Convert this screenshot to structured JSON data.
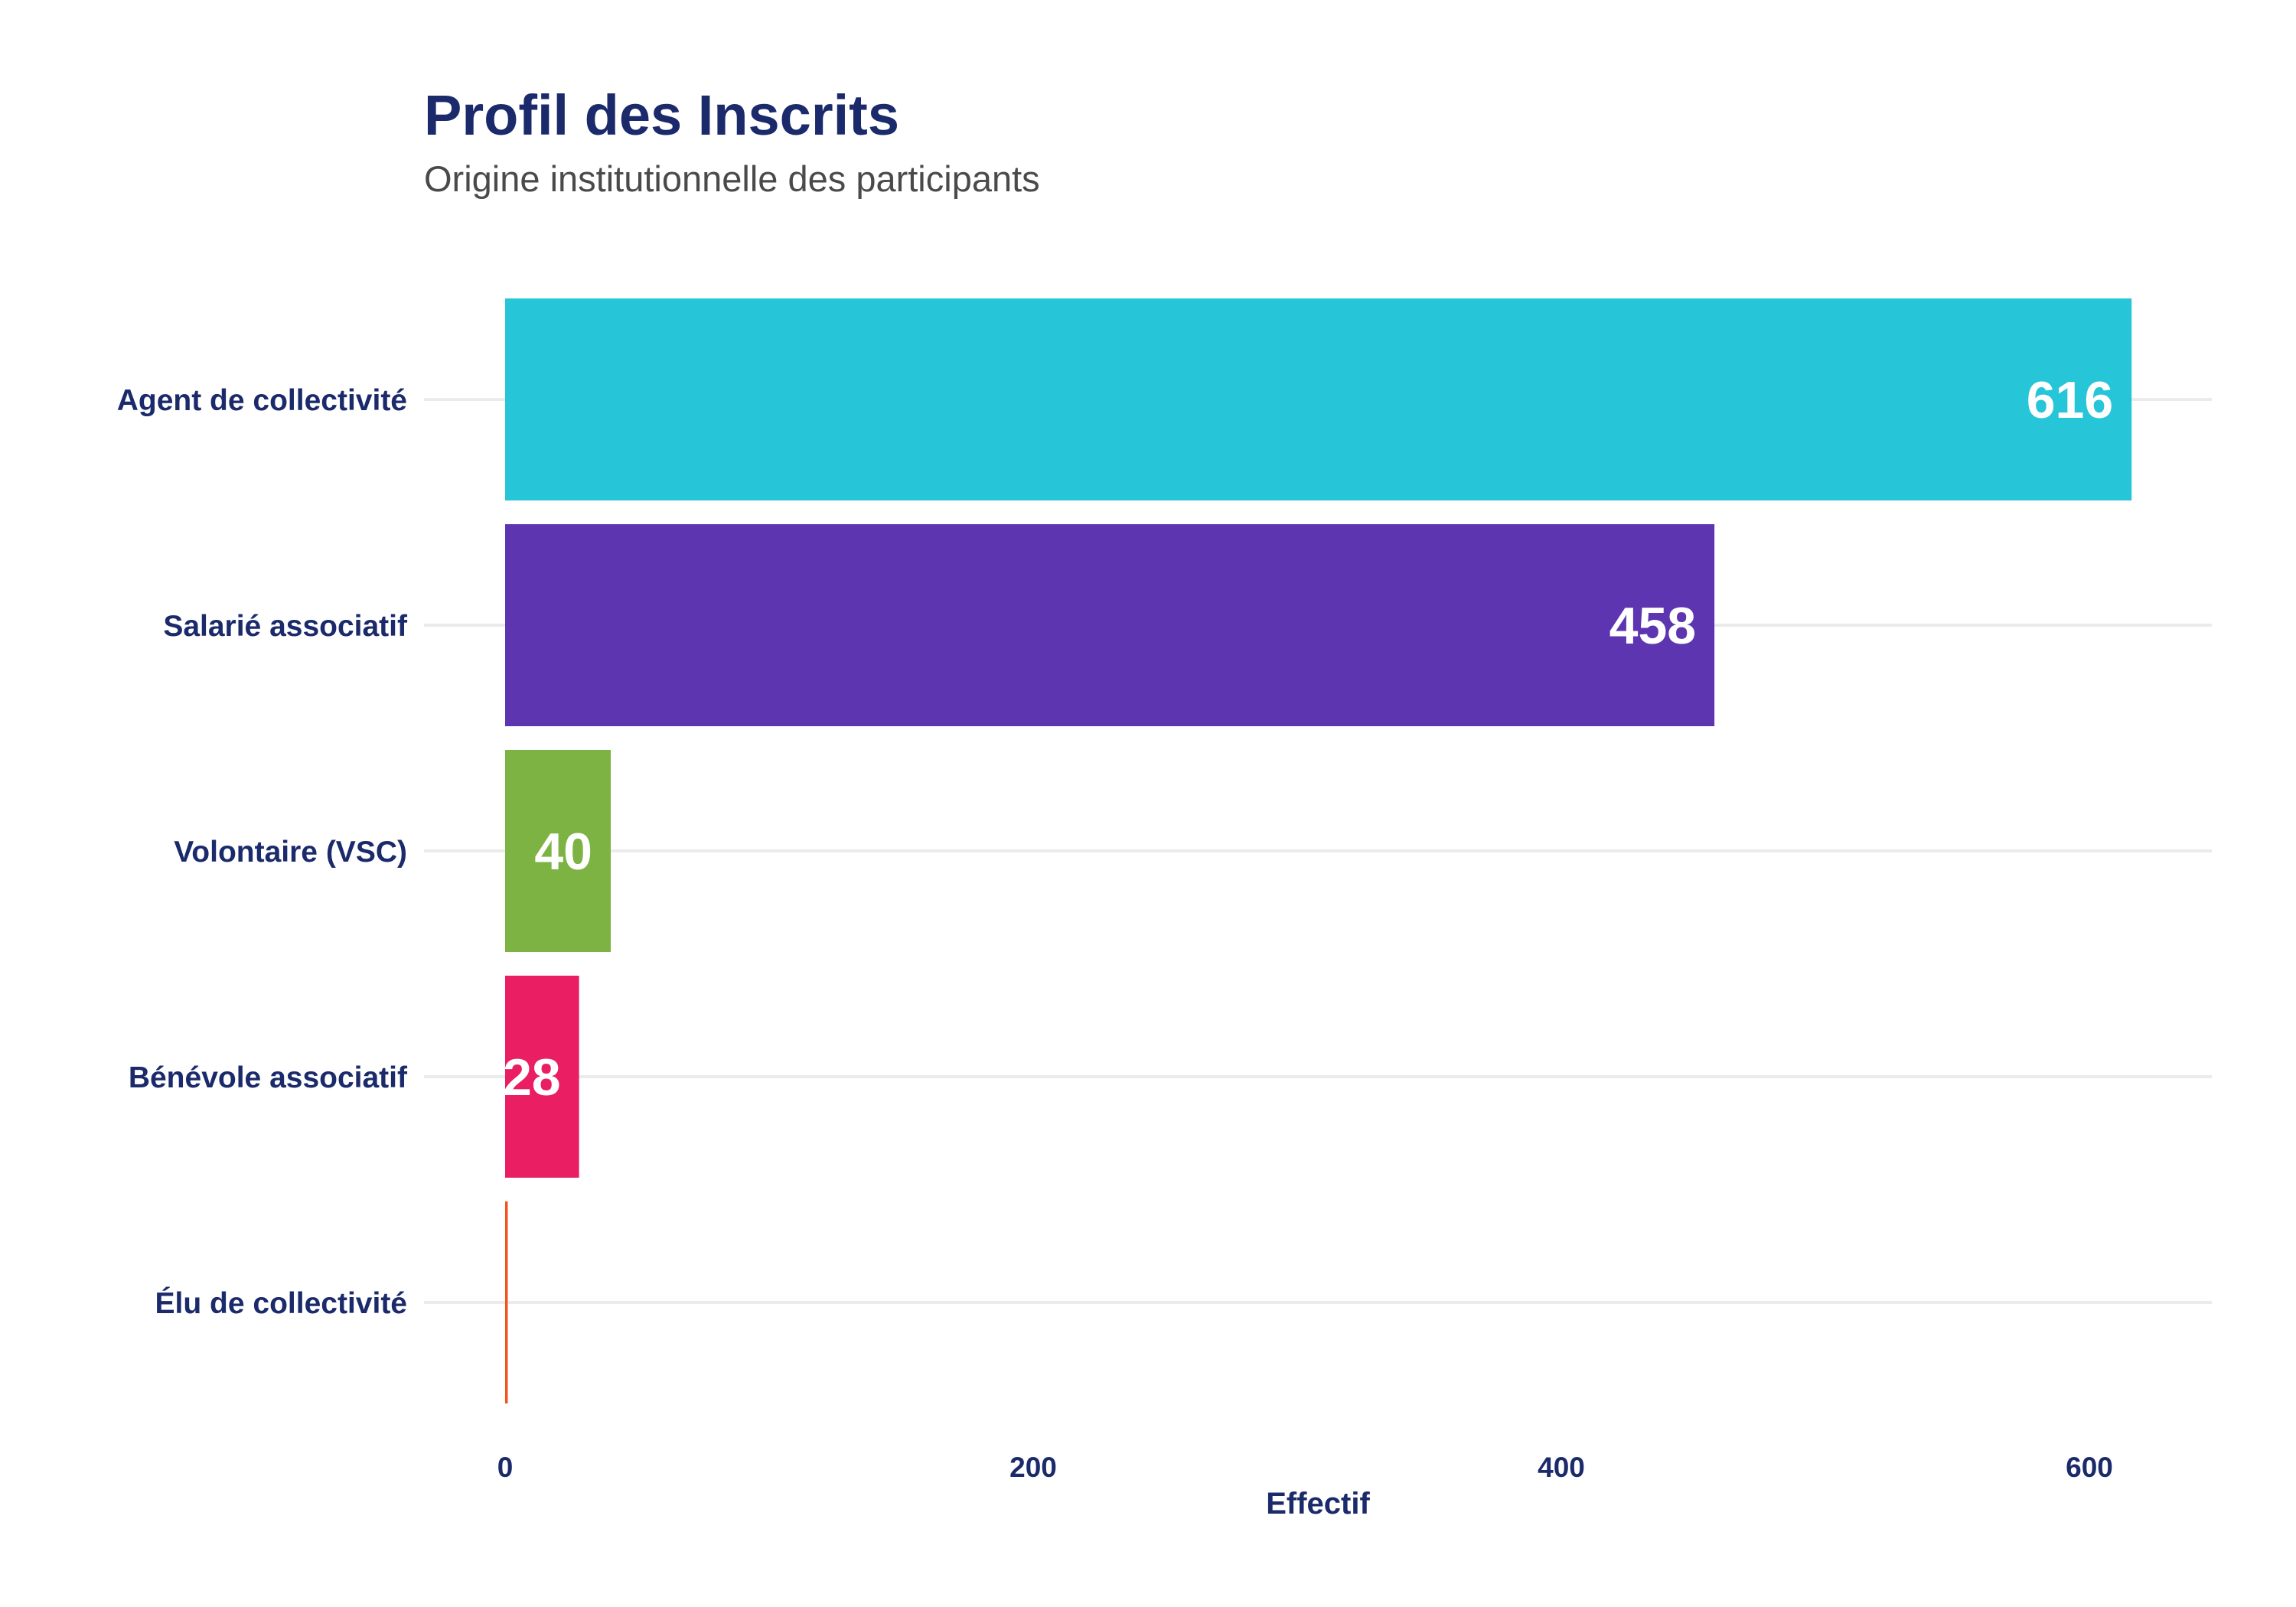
{
  "chart_data": {
    "type": "bar",
    "orientation": "horizontal",
    "title": "Profil des Inscrits",
    "subtitle": "Origine institutionnelle des participants",
    "xlabel": "Effectif",
    "ylabel": "",
    "xlim": [
      0,
      630
    ],
    "x_ticks": [
      0,
      200,
      400,
      600
    ],
    "grid": true,
    "legend": "none",
    "categories": [
      "Agent de collectivité",
      "Salarié associatif",
      "Volontaire (VSC)",
      "Bénévole associatif",
      "Élu de collectivité"
    ],
    "values": [
      616,
      458,
      40,
      28,
      1
    ],
    "value_labels": [
      "616",
      "458",
      "40",
      "28",
      ""
    ],
    "colors": [
      "#26c5d8",
      "#5e35b1",
      "#7cb342",
      "#e91e63",
      "#f4511e"
    ]
  }
}
